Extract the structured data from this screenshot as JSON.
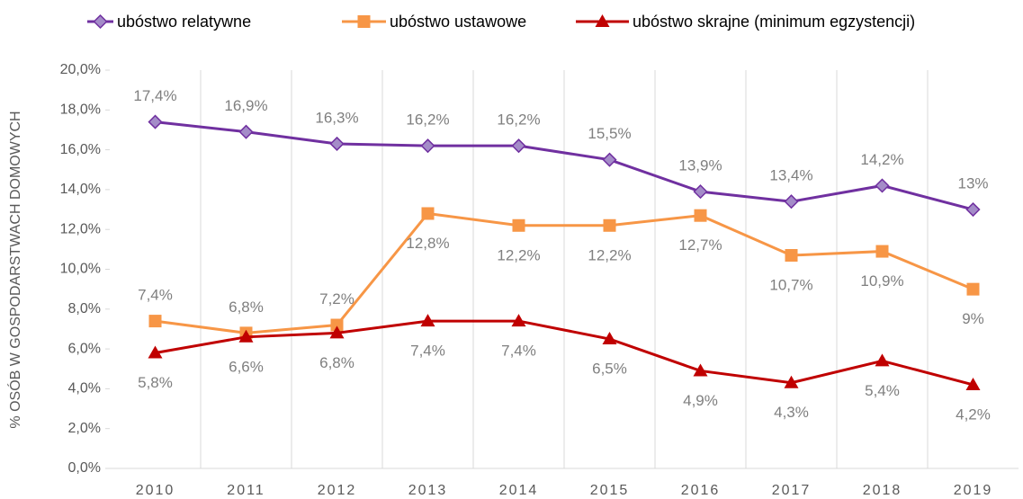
{
  "chart_data": {
    "type": "line",
    "y_label": "% OSÓB W GOSPODARSTWACH DOMOWYCH",
    "categories": [
      "2010",
      "2011",
      "2012",
      "2013",
      "2014",
      "2015",
      "2016",
      "2017",
      "2018",
      "2019"
    ],
    "series": [
      {
        "name": "ubóstwo relatywne",
        "color": "#7030a0",
        "marker": "diamond",
        "values": [
          17.4,
          16.9,
          16.3,
          16.2,
          16.2,
          15.5,
          13.9,
          13.4,
          14.2,
          13
        ],
        "value_labels": [
          "17,4%",
          "16,9%",
          "16,3%",
          "16,2%",
          "16,2%",
          "15,5%",
          "13,9%",
          "13,4%",
          "14,2%",
          "13%"
        ]
      },
      {
        "name": "ubóstwo ustawowe",
        "color": "#f79646",
        "marker": "square",
        "values": [
          7.4,
          6.8,
          7.2,
          12.8,
          12.2,
          12.2,
          12.7,
          10.7,
          10.9,
          9
        ],
        "value_labels": [
          "7,4%",
          "6,8%",
          "7,2%",
          "12,8%",
          "12,2%",
          "12,2%",
          "12,7%",
          "10,7%",
          "10,9%",
          "9%"
        ]
      },
      {
        "name": "ubóstwo skrajne (minimum egzystencji)",
        "color": "#c00000",
        "marker": "triangle",
        "values": [
          5.8,
          6.6,
          6.8,
          7.4,
          7.4,
          6.5,
          4.9,
          4.3,
          5.4,
          4.2
        ],
        "value_labels": [
          "5,8%",
          "6,6%",
          "6,8%",
          "7,4%",
          "7,4%",
          "6,5%",
          "4,9%",
          "4,3%",
          "5,4%",
          "4,2%"
        ]
      }
    ],
    "ylim": [
      0,
      20
    ],
    "yticks": [
      {
        "value": 0,
        "label": "0,0%"
      },
      {
        "value": 2,
        "label": "2,0%"
      },
      {
        "value": 4,
        "label": "4,0%"
      },
      {
        "value": 6,
        "label": "6,0%"
      },
      {
        "value": 8,
        "label": "8,0%"
      },
      {
        "value": 10,
        "label": "10,0%"
      },
      {
        "value": 12,
        "label": "12,0%"
      },
      {
        "value": 14,
        "label": "14,0%"
      },
      {
        "value": 16,
        "label": "16,0%"
      },
      {
        "value": 18,
        "label": "18,0%"
      },
      {
        "value": 20,
        "label": "20,0%"
      }
    ],
    "legend": "top"
  }
}
